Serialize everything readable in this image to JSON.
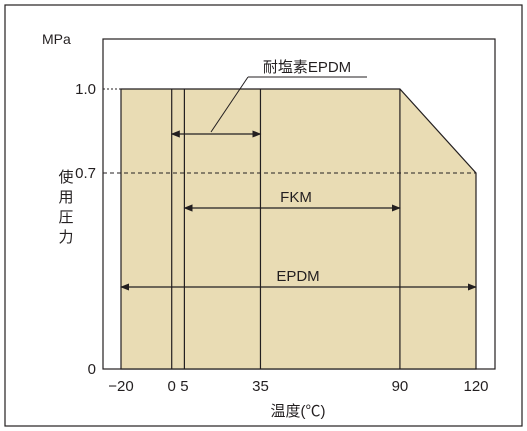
{
  "chart_data": {
    "type": "area",
    "ylabel_unit": "MPa",
    "ylabel": [
      "使",
      "用",
      "圧",
      "力"
    ],
    "xlabel": "温度(℃)",
    "ylim": [
      0,
      1.1
    ],
    "y_ticks": [
      {
        "value": 0,
        "label": "0"
      },
      {
        "value": 0.7,
        "label": "0.7"
      },
      {
        "value": 1.0,
        "label": "1.0"
      }
    ],
    "x_ticks": [
      {
        "value": -20,
        "label": "−20"
      },
      {
        "value": 0,
        "label": "0"
      },
      {
        "value": 5,
        "label": "5"
      },
      {
        "value": 35,
        "label": "35"
      },
      {
        "value": 90,
        "label": "90"
      },
      {
        "value": 120,
        "label": "120"
      }
    ],
    "envelope": [
      {
        "x": -20,
        "y": 0
      },
      {
        "x": -20,
        "y": 1.0
      },
      {
        "x": 90,
        "y": 1.0
      },
      {
        "x": 120,
        "y": 0.7
      },
      {
        "x": 120,
        "y": 0
      }
    ],
    "reference_line": {
      "y": 0.7,
      "style": "dashed"
    },
    "vertical_lines": [
      0,
      5,
      35,
      90
    ],
    "ranges": [
      {
        "name": "耐塩素EPDM",
        "from": 0,
        "to": 35,
        "y": 0.8
      },
      {
        "name": "FKM",
        "from": 5,
        "to": 90,
        "y": 0.55
      },
      {
        "name": "EPDM",
        "from": -20,
        "to": 120,
        "y": 0.3
      }
    ],
    "colors": {
      "fill": "#e9dcb4",
      "line": "#231f20",
      "frame": "#231f20"
    }
  }
}
